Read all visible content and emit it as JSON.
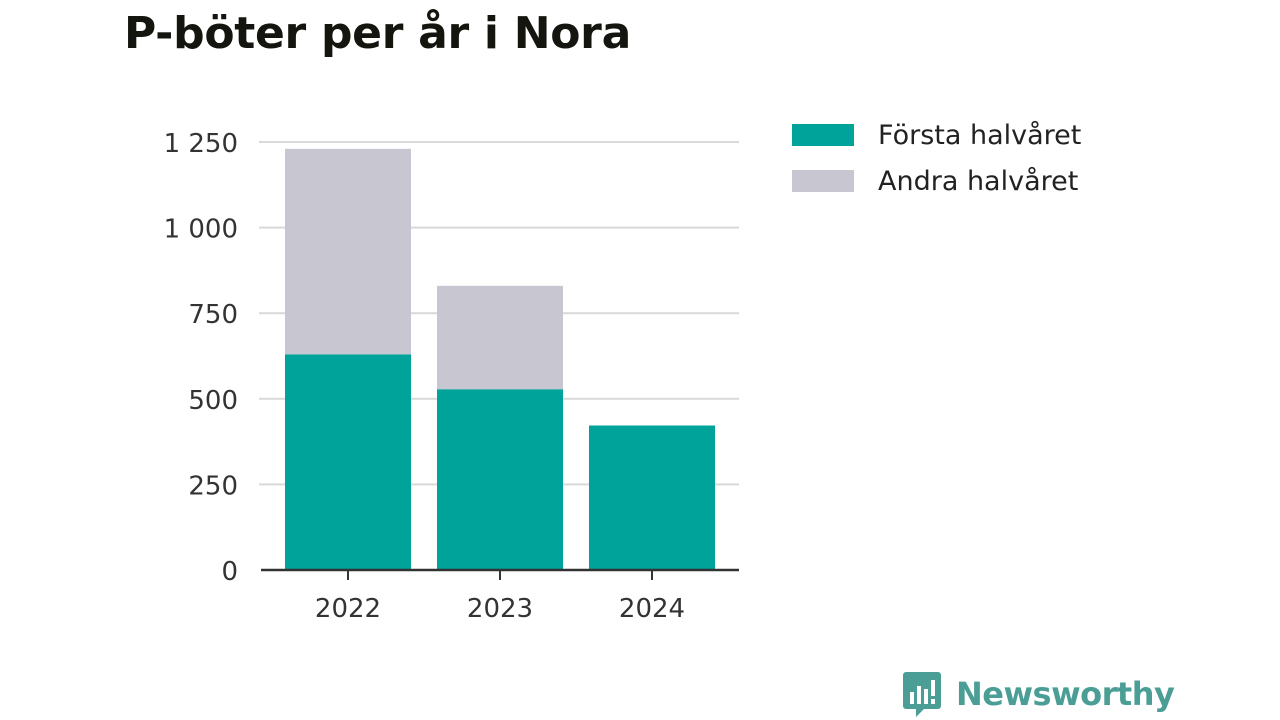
{
  "chart_data": {
    "type": "bar",
    "stacked": true,
    "title": "P-böter per år i Nora",
    "xlabel": "",
    "ylabel": "",
    "categories": [
      "2022",
      "2023",
      "2024"
    ],
    "series": [
      {
        "name": "Första halvåret",
        "color": "#00a39a",
        "values": [
          630,
          528,
          422
        ]
      },
      {
        "name": "Andra halvåret",
        "color": "#c7c6d1",
        "values": [
          600,
          302,
          0
        ]
      }
    ],
    "ylim": [
      0,
      1250
    ],
    "yticks": [
      0,
      250,
      500,
      750,
      1000,
      1250
    ],
    "ytick_labels": [
      "0",
      "250",
      "500",
      "750",
      "1 000",
      "1 250"
    ],
    "grid": true,
    "legend_position": "right"
  },
  "brand": {
    "name": "Newsworthy",
    "icon": "bar-chart-speech-bubble-icon",
    "color": "#4a9e95"
  }
}
